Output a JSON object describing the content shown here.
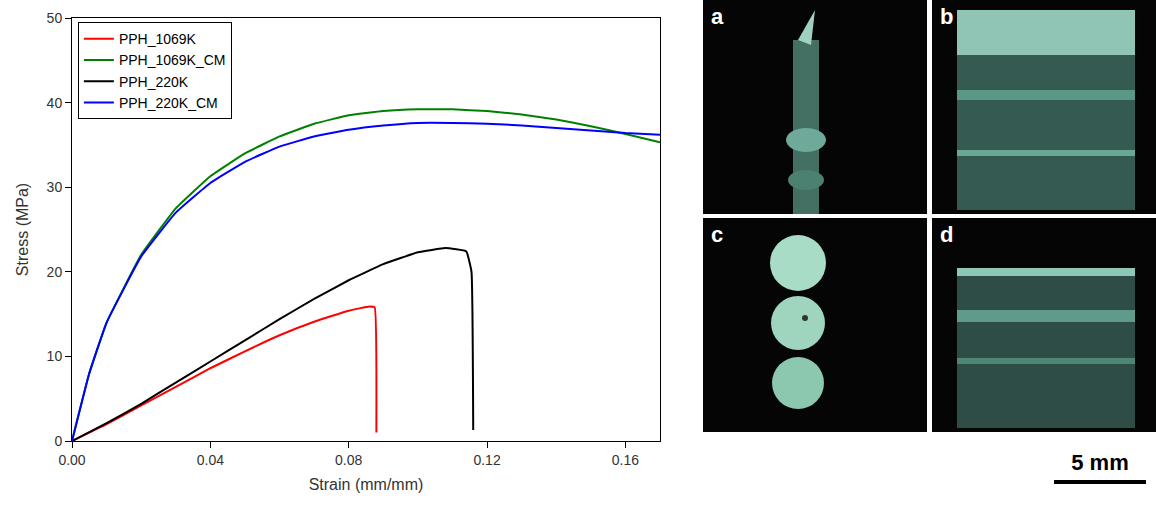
{
  "chart_data": {
    "type": "line",
    "x_label": "Strain (mm/mm)",
    "y_label": "Stress (MPa)",
    "xlim": [
      0,
      0.17
    ],
    "ylim": [
      0,
      50
    ],
    "xticks": [
      {
        "value": 0,
        "label": "0.00"
      },
      {
        "value": 0.04,
        "label": "0.04"
      },
      {
        "value": 0.08,
        "label": "0.08"
      },
      {
        "value": 0.12,
        "label": "0.12"
      },
      {
        "value": 0.16,
        "label": "0.16"
      }
    ],
    "yticks": [
      0,
      10,
      20,
      30,
      40,
      50
    ],
    "grid": false,
    "legend": "upper left",
    "series": [
      {
        "name": "PPH_1069K",
        "color": "#ff0000",
        "x": [
          0,
          0.01,
          0.02,
          0.03,
          0.04,
          0.05,
          0.06,
          0.07,
          0.08,
          0.086,
          0.0875,
          0.088
        ],
        "values": [
          0,
          2,
          4.2,
          6.4,
          8.6,
          10.6,
          12.5,
          14.1,
          15.4,
          15.9,
          15.8,
          1
        ]
      },
      {
        "name": "PPH_1069K_CM",
        "color": "#008000",
        "x": [
          0,
          0.005,
          0.01,
          0.02,
          0.03,
          0.04,
          0.05,
          0.06,
          0.07,
          0.08,
          0.09,
          0.1,
          0.11,
          0.12,
          0.13,
          0.14,
          0.15,
          0.16,
          0.17
        ],
        "values": [
          0,
          8,
          14,
          22,
          27.5,
          31.3,
          34,
          36,
          37.5,
          38.5,
          39,
          39.2,
          39.2,
          39,
          38.6,
          38,
          37.2,
          36.3,
          35.3
        ]
      },
      {
        "name": "PPH_220K",
        "color": "#000000",
        "x": [
          0,
          0.01,
          0.02,
          0.03,
          0.04,
          0.05,
          0.06,
          0.07,
          0.08,
          0.09,
          0.1,
          0.108,
          0.114,
          0.1155,
          0.116
        ],
        "values": [
          0,
          2.1,
          4.4,
          6.9,
          9.4,
          11.9,
          14.4,
          16.8,
          19,
          20.9,
          22.3,
          22.8,
          22.4,
          20,
          1.3
        ]
      },
      {
        "name": "PPH_220K_CM",
        "color": "#0000ff",
        "x": [
          0,
          0.005,
          0.01,
          0.02,
          0.03,
          0.04,
          0.05,
          0.06,
          0.07,
          0.08,
          0.09,
          0.1,
          0.11,
          0.12,
          0.13,
          0.14,
          0.15,
          0.16,
          0.17
        ],
        "values": [
          0,
          8,
          14,
          21.8,
          27,
          30.5,
          33,
          34.8,
          36,
          36.8,
          37.3,
          37.6,
          37.6,
          37.5,
          37.3,
          37,
          36.7,
          36.4,
          36.2
        ]
      }
    ]
  },
  "photo_panels": {
    "labels": [
      "a",
      "b",
      "c",
      "d"
    ],
    "scale_bar": "5 mm"
  }
}
